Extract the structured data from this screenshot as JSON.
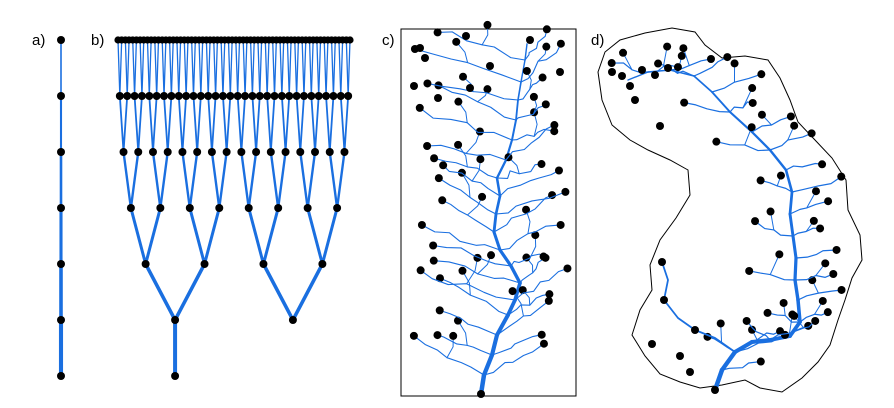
{
  "panels": [
    {
      "id": "a",
      "label": "a)"
    },
    {
      "id": "b",
      "label": "b)"
    },
    {
      "id": "c",
      "label": "c)"
    },
    {
      "id": "d",
      "label": "d)"
    }
  ],
  "colors": {
    "channel": "#1a6fe0",
    "node": "#000000",
    "boundary": "#000000",
    "background": "#ffffff"
  }
}
